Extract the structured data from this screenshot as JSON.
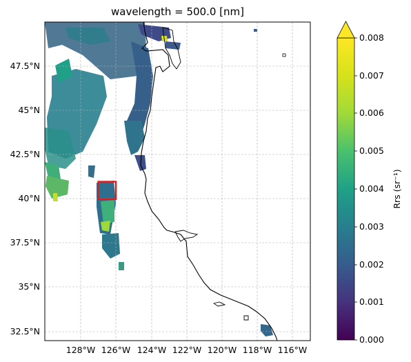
{
  "title": "wavelength = 500.0 [nm]",
  "map": {
    "lon_range": [
      -130,
      -115
    ],
    "lat_range": [
      32,
      50
    ],
    "x_ticks": [
      "128°W",
      "126°W",
      "124°W",
      "122°W",
      "120°W",
      "118°W",
      "116°W"
    ],
    "y_ticks": [
      "47.5°N",
      "45°N",
      "42.5°N",
      "40°N",
      "37.5°N",
      "35°N",
      "32.5°N"
    ],
    "gridlines": true,
    "highlight_box": {
      "color": "#e31a1c",
      "lon": [
        -127,
        -126
      ],
      "lat": [
        40,
        41
      ]
    }
  },
  "colorbar": {
    "label": "Rrs (sr⁻¹)",
    "ticks": [
      "0.000",
      "0.001",
      "0.002",
      "0.003",
      "0.004",
      "0.005",
      "0.006",
      "0.007",
      "0.008"
    ],
    "range": [
      0.0,
      0.008
    ],
    "colormap": "viridis",
    "extend": "max"
  }
}
